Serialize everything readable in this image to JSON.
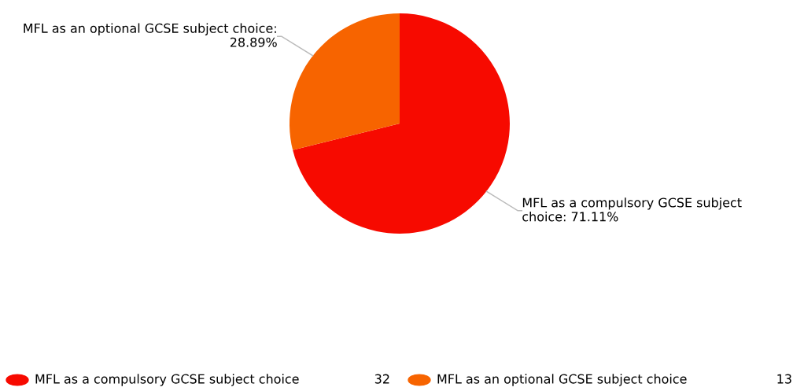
{
  "chart_data": {
    "type": "pie",
    "categories": [
      "MFL as a compulsory GCSE subject choice",
      "MFL as an optional GCSE subject choice"
    ],
    "values": [
      32,
      13
    ],
    "value_labels": [
      "32",
      "13"
    ],
    "annotations": [
      "MFL as a compulsory GCSE subject choice: 71.11%",
      "MFL as an optional GCSE subject choice: 28.89%"
    ],
    "colors": [
      "#f70a00",
      "#f76400"
    ],
    "legend": "bottom"
  }
}
